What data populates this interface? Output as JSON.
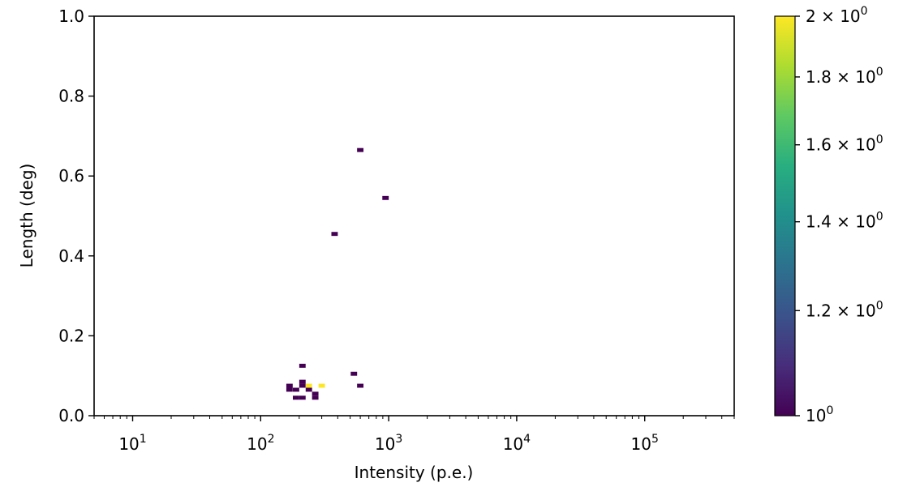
{
  "chart_data": {
    "type": "heatmap",
    "title": "",
    "xlabel": "Intensity (p.e.)",
    "ylabel": "Length (deg)",
    "x_scale": "log",
    "xlim": [
      5,
      500000
    ],
    "ylim": [
      0.0,
      1.0
    ],
    "bin_width_log10": 0.05,
    "bin_height": 0.01,
    "x_ticks": [
      {
        "value": 10,
        "label": "10",
        "exp": "1"
      },
      {
        "value": 100,
        "label": "10",
        "exp": "2"
      },
      {
        "value": 1000,
        "label": "10",
        "exp": "3"
      },
      {
        "value": 10000,
        "label": "10",
        "exp": "4"
      },
      {
        "value": 100000,
        "label": "10",
        "exp": "5"
      }
    ],
    "y_ticks": [
      {
        "value": 0.0,
        "label": "0.0"
      },
      {
        "value": 0.2,
        "label": "0.2"
      },
      {
        "value": 0.4,
        "label": "0.4"
      },
      {
        "value": 0.6,
        "label": "0.6"
      },
      {
        "value": 0.8,
        "label": "0.8"
      },
      {
        "value": 1.0,
        "label": "1.0"
      }
    ],
    "colorbar": {
      "colormap": "viridis",
      "scale": "log",
      "range": [
        1,
        2
      ],
      "ticks": [
        {
          "value": 1.0,
          "label": "10",
          "exp": "0"
        },
        {
          "value": 1.2,
          "label": "1.2 × 10",
          "exp": "0"
        },
        {
          "value": 1.4,
          "label": "1.4 × 10",
          "exp": "0"
        },
        {
          "value": 1.6,
          "label": "1.6 × 10",
          "exp": "0"
        },
        {
          "value": 1.8,
          "label": "1.8 × 10",
          "exp": "0"
        },
        {
          "value": 2.0,
          "label": "2 × 10",
          "exp": "0"
        }
      ]
    },
    "cells": [
      {
        "x": 600,
        "y": 0.665,
        "count": 1
      },
      {
        "x": 945,
        "y": 0.545,
        "count": 1
      },
      {
        "x": 378,
        "y": 0.455,
        "count": 1
      },
      {
        "x": 212,
        "y": 0.125,
        "count": 1
      },
      {
        "x": 535,
        "y": 0.105,
        "count": 1
      },
      {
        "x": 212,
        "y": 0.085,
        "count": 1
      },
      {
        "x": 168,
        "y": 0.075,
        "count": 1
      },
      {
        "x": 212,
        "y": 0.075,
        "count": 1
      },
      {
        "x": 238,
        "y": 0.075,
        "count": 2
      },
      {
        "x": 300,
        "y": 0.075,
        "count": 2
      },
      {
        "x": 600,
        "y": 0.075,
        "count": 1
      },
      {
        "x": 168,
        "y": 0.065,
        "count": 1
      },
      {
        "x": 189,
        "y": 0.065,
        "count": 1
      },
      {
        "x": 238,
        "y": 0.065,
        "count": 1
      },
      {
        "x": 267,
        "y": 0.055,
        "count": 1
      },
      {
        "x": 189,
        "y": 0.045,
        "count": 1
      },
      {
        "x": 212,
        "y": 0.045,
        "count": 1
      },
      {
        "x": 267,
        "y": 0.045,
        "count": 1
      }
    ]
  }
}
